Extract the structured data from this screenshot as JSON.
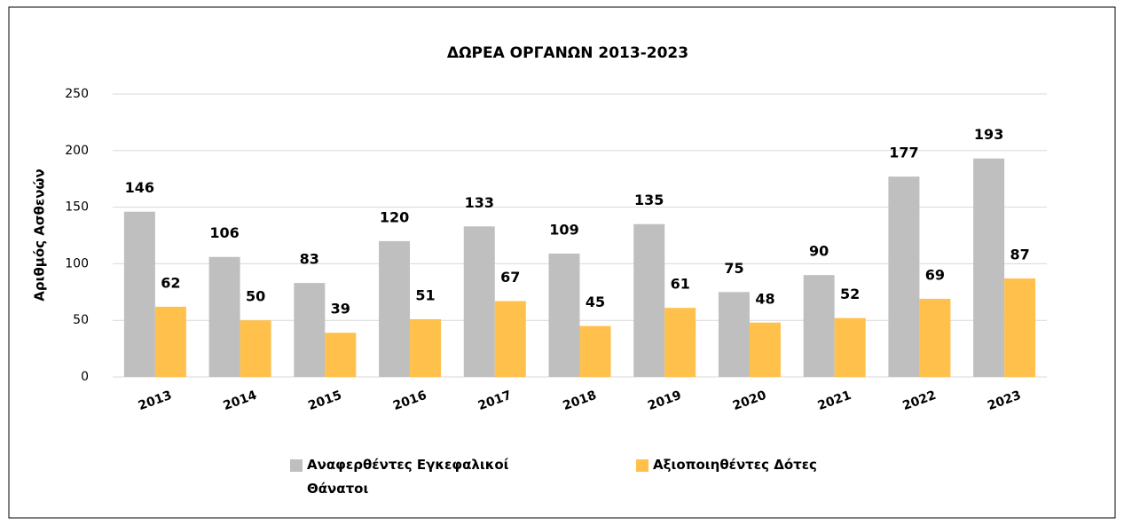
{
  "chart_data": {
    "type": "bar",
    "title": "ΔΩΡΕΑ ΟΡΓΑΝΩΝ 2013-2023",
    "y_label": "Αριθμός Ασθενών",
    "categories": [
      "2013",
      "2014",
      "2015",
      "2016",
      "2017",
      "2018",
      "2019",
      "2020",
      "2021",
      "2022",
      "2023"
    ],
    "series": [
      {
        "name": "Αναφερθέντες Εγκεφαλικοί Θάνατοι",
        "color": "#bfbfbf",
        "values": [
          146,
          106,
          83,
          120,
          133,
          109,
          135,
          75,
          90,
          177,
          193
        ]
      },
      {
        "name": "Αξιοποιηθέντες Δότες",
        "color": "#ffc04c",
        "values": [
          62,
          50,
          39,
          51,
          67,
          45,
          61,
          48,
          52,
          69,
          87
        ]
      }
    ],
    "ylim": [
      0,
      250
    ],
    "yticks": [
      0,
      50,
      100,
      150,
      200,
      250
    ],
    "grid": true,
    "legend": "bottom"
  }
}
